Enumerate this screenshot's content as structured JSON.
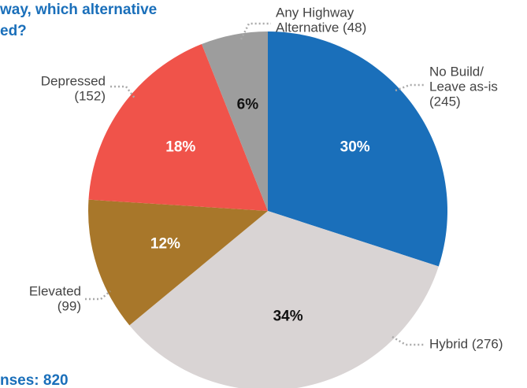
{
  "chart_data": {
    "type": "pie",
    "title_lines": [
      "way, which alternative",
      "ed?"
    ],
    "footnote": "nses: 820",
    "categories": [
      [
        "No Build/",
        "Leave as-is",
        "(245)"
      ],
      [
        "Hybrid (276)"
      ],
      [
        "Elevated",
        "(99)"
      ],
      [
        "Depressed",
        "(152)"
      ],
      [
        "Any Highway",
        "Alternative (48)"
      ]
    ],
    "values": [
      30,
      34,
      12,
      18,
      6
    ],
    "value_labels": [
      "30%",
      "34%",
      "12%",
      "18%",
      "6%"
    ],
    "colors": [
      "#1a6fba",
      "#d9d4d4",
      "#a8772a",
      "#f0534a",
      "#9d9d9d"
    ]
  }
}
